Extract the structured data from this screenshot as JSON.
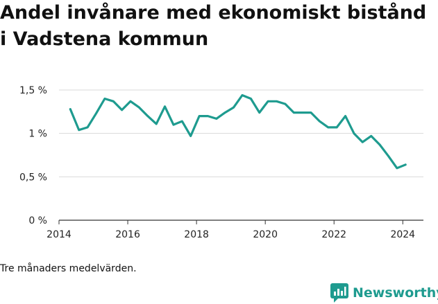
{
  "title": "Andel invånare med ekonomiskt bistånd i Vadstena kommun",
  "footnote": "Tre månaders medelvärden.",
  "brand": {
    "name": "Newsworthy",
    "icon": "newsworthy-logo-icon",
    "color": "#1e9b8f"
  },
  "chart_data": {
    "type": "line",
    "title": "Andel invånare med ekonomiskt bistånd i Vadstena kommun",
    "xlabel": "",
    "ylabel": "",
    "xlim": [
      2014,
      2024.6
    ],
    "ylim": [
      0,
      1.5
    ],
    "y_ticks": [
      {
        "value": 0,
        "label": "0 %"
      },
      {
        "value": 0.5,
        "label": "0,5 %"
      },
      {
        "value": 1,
        "label": "1 %"
      },
      {
        "value": 1.5,
        "label": "1,5 %"
      }
    ],
    "x_ticks": [
      {
        "value": 2014,
        "label": "2014"
      },
      {
        "value": 2016,
        "label": "2016"
      },
      {
        "value": 2018,
        "label": "2018"
      },
      {
        "value": 2020,
        "label": "2020"
      },
      {
        "value": 2022,
        "label": "2022"
      },
      {
        "value": 2024,
        "label": "2024"
      }
    ],
    "grid": "horizontal",
    "series": [
      {
        "color": "#1e9b8f",
        "x": [
          2014.33,
          2014.58,
          2014.83,
          2015.08,
          2015.33,
          2015.58,
          2015.83,
          2016.08,
          2016.33,
          2016.58,
          2016.83,
          2017.08,
          2017.33,
          2017.58,
          2017.83,
          2018.08,
          2018.33,
          2018.58,
          2018.83,
          2019.08,
          2019.33,
          2019.58,
          2019.83,
          2020.08,
          2020.33,
          2020.58,
          2020.83,
          2021.08,
          2021.33,
          2021.58,
          2021.83,
          2022.08,
          2022.33,
          2022.58,
          2022.83,
          2023.08,
          2023.33,
          2023.58,
          2023.83,
          2024.08
        ],
        "y": [
          1.28,
          1.04,
          1.07,
          1.23,
          1.4,
          1.37,
          1.27,
          1.37,
          1.3,
          1.2,
          1.11,
          1.31,
          1.1,
          1.14,
          0.97,
          1.2,
          1.2,
          1.17,
          1.24,
          1.3,
          1.44,
          1.4,
          1.24,
          1.37,
          1.37,
          1.34,
          1.24,
          1.24,
          1.24,
          1.14,
          1.07,
          1.07,
          1.2,
          1.0,
          0.9,
          0.97,
          0.87,
          0.74,
          0.6,
          0.64
        ]
      }
    ]
  }
}
